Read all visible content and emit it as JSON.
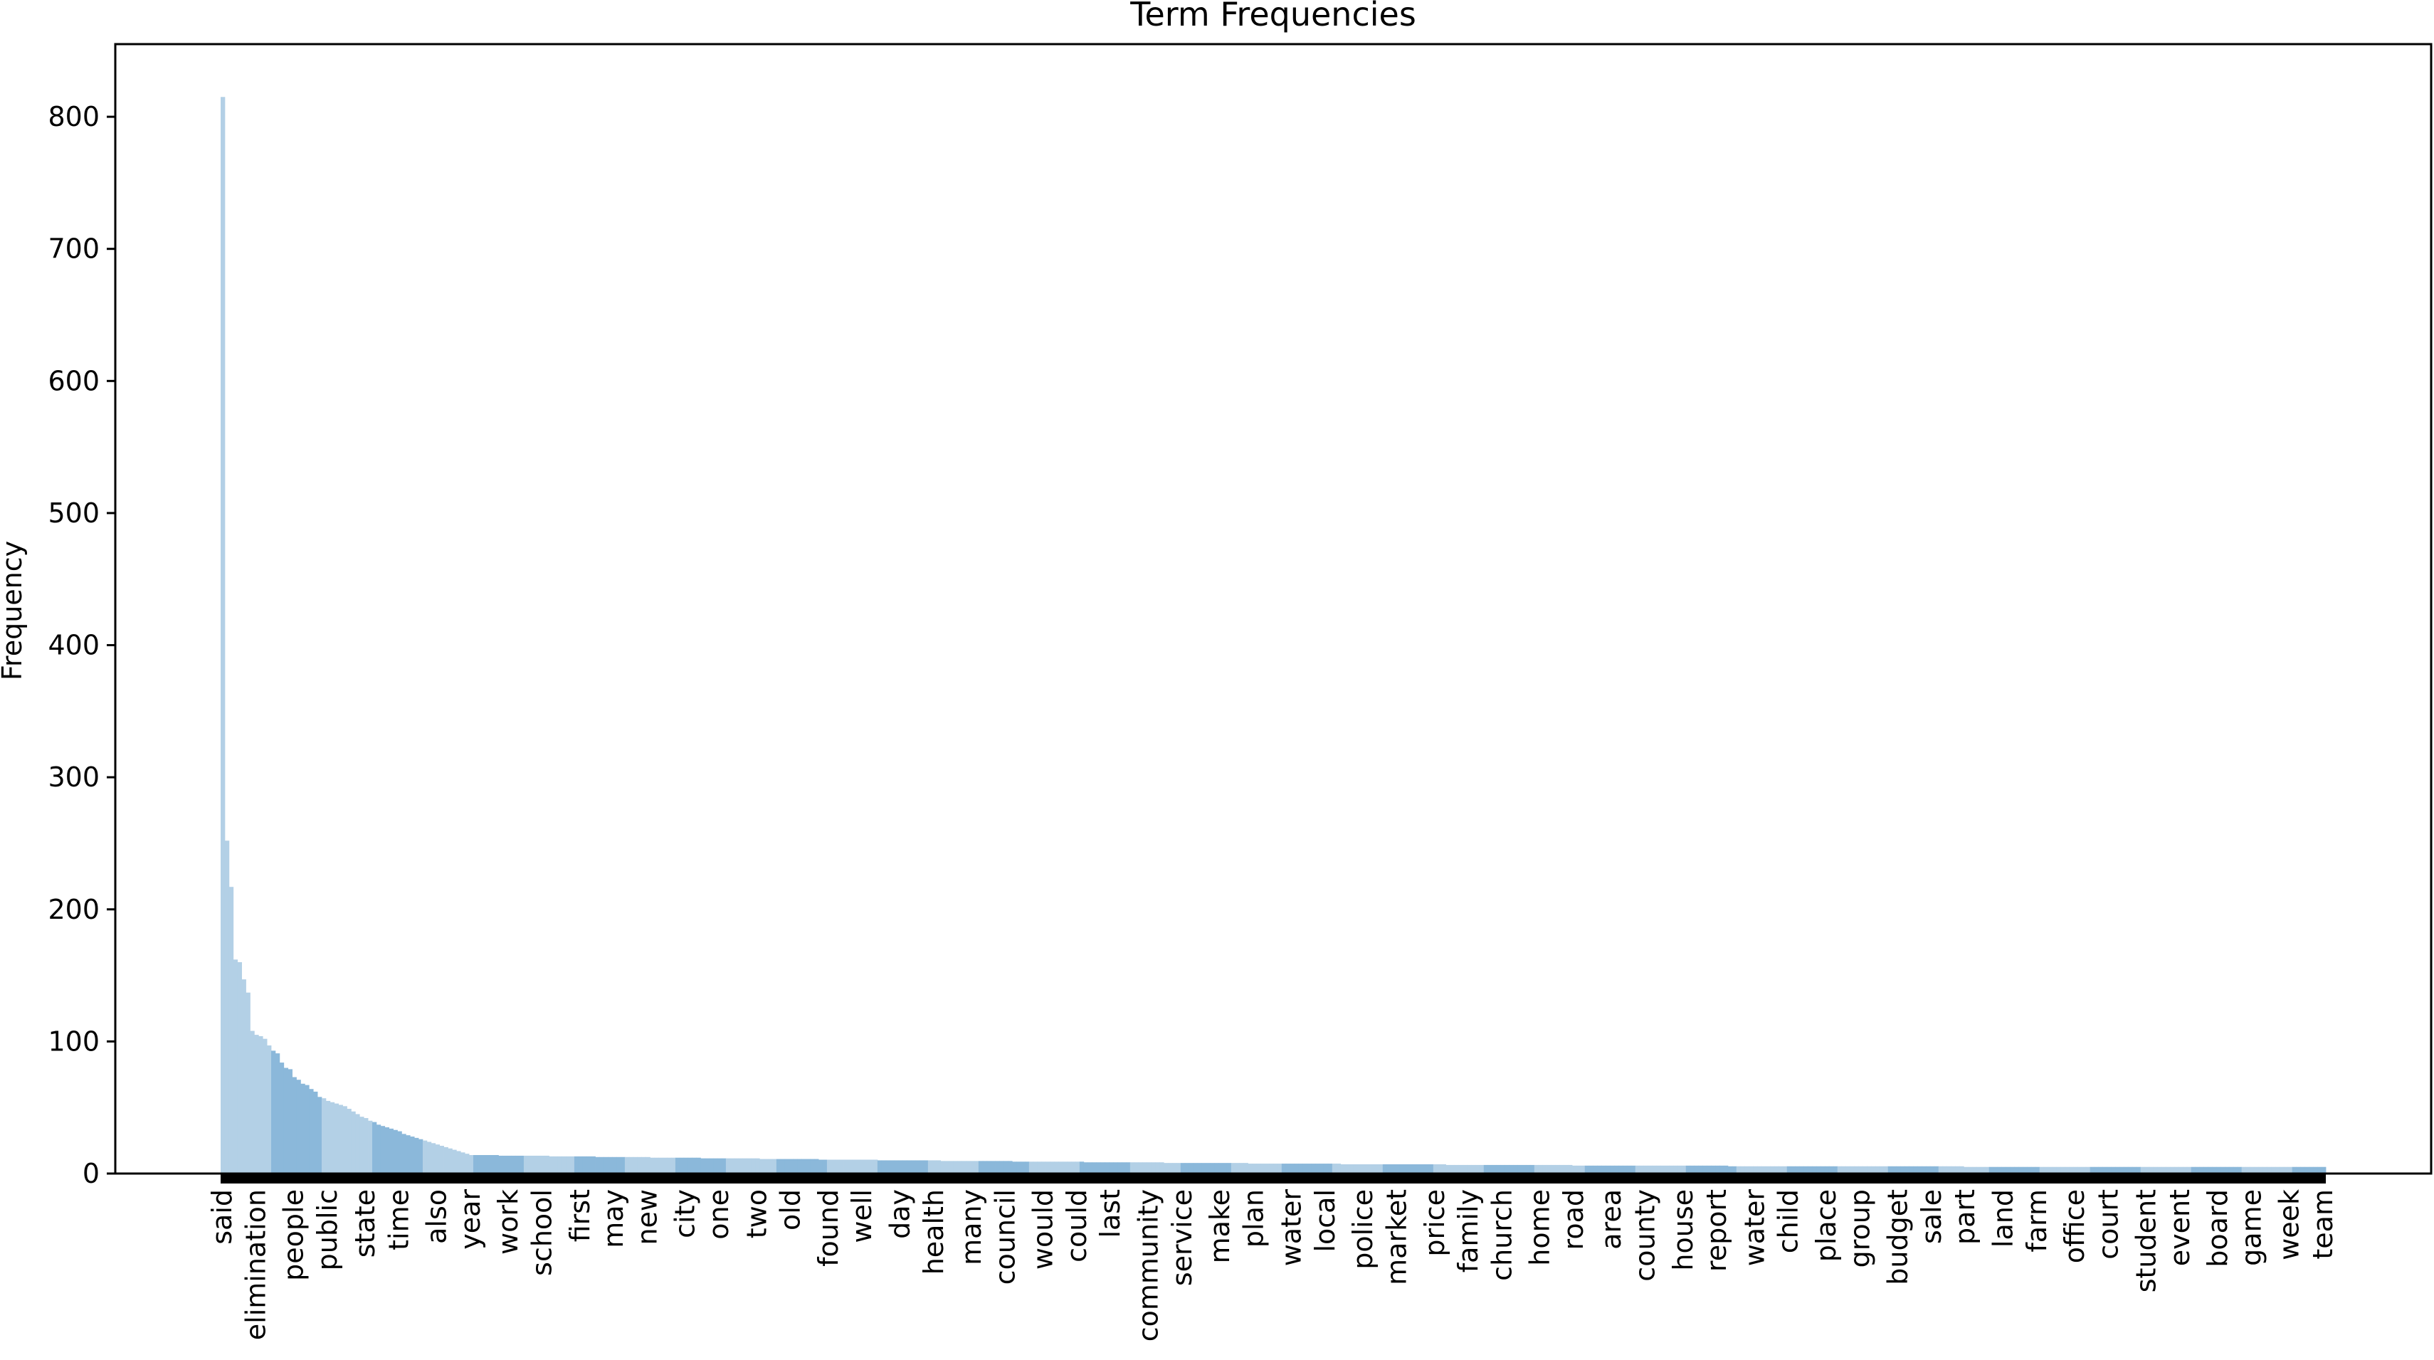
{
  "chart_data": {
    "type": "bar",
    "title": "Term Frequencies",
    "xlabel": "",
    "ylabel": "Frequency",
    "ylim": [
      0,
      855
    ],
    "yticks": [
      0,
      100,
      200,
      300,
      400,
      500,
      600,
      700,
      800
    ],
    "grid": false,
    "legend": "none",
    "colors": {
      "bar_light": "#b3d0e6",
      "bar_dark": "#8bb8da",
      "axis": "#000000"
    },
    "categories": [
      "said",
      "elimination",
      "people",
      "public",
      "state",
      "time",
      "also",
      "year",
      "work",
      "school",
      "first",
      "may",
      "new",
      "city",
      "one",
      "two",
      "old",
      "found",
      "well",
      "day",
      "health",
      "many",
      "council",
      "would",
      "could",
      "last",
      "community",
      "service",
      "make",
      "plan",
      "water",
      "local",
      "police",
      "market",
      "price",
      "family",
      "church",
      "home",
      "road",
      "area",
      "county",
      "house",
      "report",
      "water",
      "child",
      "place",
      "group",
      "budget",
      "sale",
      "part",
      "land",
      "farm",
      "office",
      "court",
      "student",
      "event",
      "board",
      "game",
      "week",
      "team"
    ],
    "values": [
      815,
      252,
      217,
      162,
      160,
      147,
      137,
      108,
      105,
      104,
      102,
      97,
      93,
      91,
      84,
      80,
      79,
      73,
      71,
      68,
      67,
      64,
      62,
      58,
      57,
      55,
      54,
      53,
      52,
      51,
      49,
      47,
      45,
      43,
      42,
      40,
      39,
      37,
      36,
      35,
      34,
      33,
      32,
      30,
      29,
      28,
      27,
      26,
      25,
      24,
      23,
      22,
      21,
      20,
      19,
      18,
      17,
      16,
      15,
      14
    ],
    "tail_summary": {
      "approx_bar_count": 500,
      "value_min": 5,
      "value_at_mid": 9
    }
  }
}
